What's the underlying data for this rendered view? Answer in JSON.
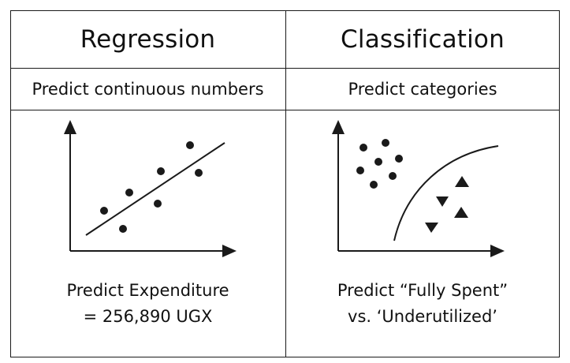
{
  "columns": [
    {
      "title": "Regression",
      "subtitle": "Predict continuous numbers",
      "prediction_line1": "Predict Expenditure",
      "prediction_line2": "= 256,890 UGX",
      "icon": "scatter-with-regression-line-icon"
    },
    {
      "title": "Classification",
      "subtitle": "Predict categories",
      "prediction_line1": "Predict “Fully Spent”",
      "prediction_line2": "vs. ‘Underutilized’",
      "icon": "scatter-with-decision-boundary-icon"
    }
  ],
  "colors": {
    "ink": "#1a1a1a",
    "background": "#ffffff"
  }
}
